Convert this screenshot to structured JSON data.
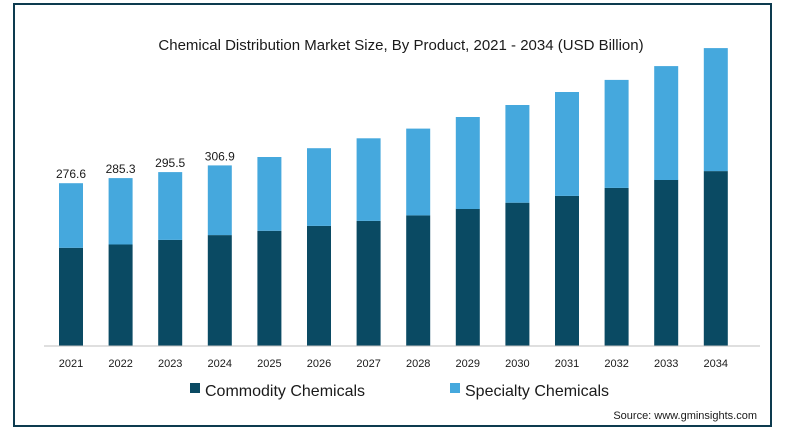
{
  "colors": {
    "commodity": "#0a4a63",
    "specialty": "#45a8dd",
    "border": "#0d3b4f",
    "axis": "#bfbfbf"
  },
  "chart_data": {
    "type": "bar",
    "stacked": true,
    "title": "Chemical Distribution Market Size, By Product, 2021 - 2034 (USD Billion)",
    "categories": [
      "2021",
      "2022",
      "2023",
      "2024",
      "2025",
      "2026",
      "2027",
      "2028",
      "2029",
      "2030",
      "2031",
      "2032",
      "2033",
      "2034"
    ],
    "series": [
      {
        "name": "Commodity Chemicals",
        "color": "#0a4a63",
        "values": [
          166.8,
          172.5,
          180.3,
          188.5,
          195.8,
          204.1,
          212.6,
          222.0,
          232.9,
          243.5,
          255.1,
          268.6,
          282.2,
          297.2
        ]
      },
      {
        "name": "Specialty Chemicals",
        "color": "#45a8dd",
        "values": [
          109.8,
          112.8,
          115.2,
          118.4,
          125.4,
          132.0,
          140.4,
          147.5,
          156.3,
          166.0,
          176.5,
          183.6,
          193.5,
          209.1
        ]
      }
    ],
    "data_labels": [
      "276.6",
      "285.3",
      "295.5",
      "306.9",
      "",
      "",
      "",
      "",
      "",
      "",
      "",
      "",
      "",
      ""
    ],
    "ylim": [
      0,
      520
    ],
    "legend": "bottom",
    "grid": false
  },
  "source": "Source: www.gminsights.com"
}
